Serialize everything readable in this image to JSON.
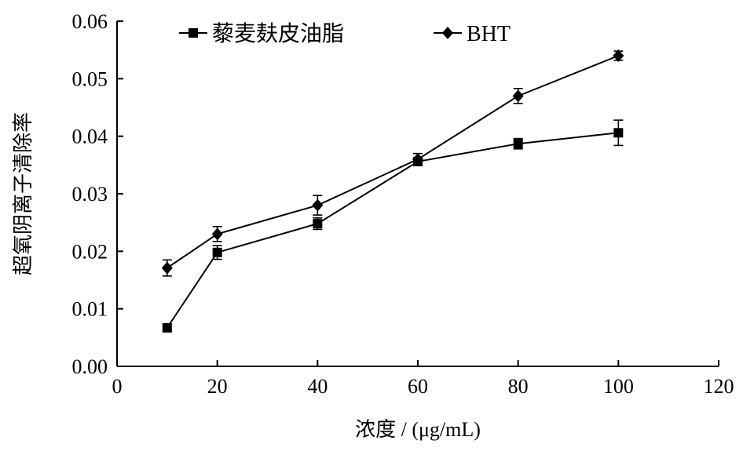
{
  "chart_data": {
    "type": "line",
    "xlabel": "浓度 / (μg/mL)",
    "ylabel": "超氧阴离子清除率",
    "xlim": [
      0,
      120
    ],
    "ylim": [
      0,
      0.06
    ],
    "x_ticks": [
      0,
      20,
      40,
      60,
      80,
      100,
      120
    ],
    "x_tick_labels": [
      "0",
      "20",
      "40",
      "60",
      "80",
      "100",
      "120"
    ],
    "y_ticks": [
      0,
      0.01,
      0.02,
      0.03,
      0.04,
      0.05,
      0.06
    ],
    "y_tick_labels": [
      "0.00",
      "0.01",
      "0.02",
      "0.03",
      "0.04",
      "0.05",
      "0.06"
    ],
    "grid": false,
    "legend_position": "top",
    "series": [
      {
        "name": "藜麦麸皮油脂",
        "marker": "square",
        "color": "#000000",
        "x": [
          10,
          20,
          40,
          60,
          80,
          100
        ],
        "y": [
          0.0067,
          0.0198,
          0.0248,
          0.0356,
          0.0387,
          0.0406
        ],
        "error": [
          0.0006,
          0.0012,
          0.001,
          0.0007,
          0.0009,
          0.0022
        ]
      },
      {
        "name": "BHT",
        "marker": "diamond",
        "color": "#000000",
        "x": [
          10,
          20,
          40,
          60,
          80,
          100
        ],
        "y": [
          0.0171,
          0.023,
          0.028,
          0.036,
          0.047,
          0.054
        ],
        "error": [
          0.0014,
          0.0013,
          0.0017,
          0.001,
          0.0013,
          0.0008
        ]
      }
    ]
  }
}
